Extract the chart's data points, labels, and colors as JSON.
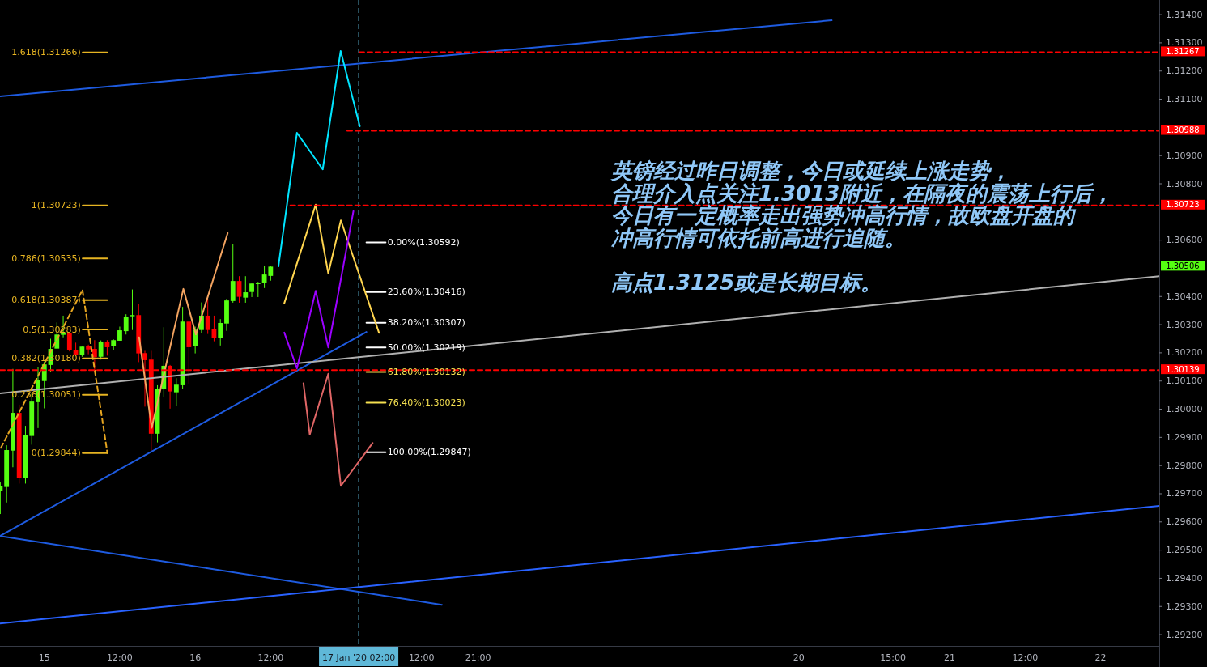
{
  "chart_data": {
    "type": "candlestick",
    "x": [
      "2020-01-14T17:00",
      "2020-01-14T18:00",
      "2020-01-14T19:00",
      "2020-01-14T20:00",
      "2020-01-14T21:00",
      "2020-01-14T22:00",
      "2020-01-14T23:00",
      "2020-01-15T00:00",
      "2020-01-15T01:00",
      "2020-01-15T02:00",
      "2020-01-15T03:00",
      "2020-01-15T04:00",
      "2020-01-15T05:00",
      "2020-01-15T06:00",
      "2020-01-15T07:00",
      "2020-01-15T08:00",
      "2020-01-15T09:00",
      "2020-01-15T10:00",
      "2020-01-15T11:00",
      "2020-01-15T12:00",
      "2020-01-15T13:00",
      "2020-01-15T14:00",
      "2020-01-15T15:00",
      "2020-01-15T16:00",
      "2020-01-15T17:00",
      "2020-01-15T18:00",
      "2020-01-15T19:00",
      "2020-01-15T20:00",
      "2020-01-15T21:00",
      "2020-01-15T22:00",
      "2020-01-15T23:00",
      "2020-01-16T00:00",
      "2020-01-16T01:00",
      "2020-01-16T02:00",
      "2020-01-16T03:00",
      "2020-01-16T04:00",
      "2020-01-16T05:00",
      "2020-01-16T06:00",
      "2020-01-16T07:00",
      "2020-01-16T08:00",
      "2020-01-16T09:00",
      "2020-01-16T10:00",
      "2020-01-16T11:00",
      "2020-01-16T12:00"
    ],
    "ohlc": [
      [
        1.29709,
        1.2974,
        1.29628,
        1.29727
      ],
      [
        1.29724,
        1.29872,
        1.29669,
        1.29855
      ],
      [
        1.29853,
        1.30143,
        1.29794,
        1.29987
      ],
      [
        1.29987,
        1.30016,
        1.29736,
        1.29755
      ],
      [
        1.29755,
        1.29941,
        1.29736,
        1.29907
      ],
      [
        1.29905,
        1.30056,
        1.29874,
        1.30027
      ],
      [
        1.30025,
        1.30148,
        1.29933,
        1.30102
      ],
      [
        1.301,
        1.30169,
        1.30003,
        1.30159
      ],
      [
        1.30157,
        1.3025,
        1.30133,
        1.30214
      ],
      [
        1.30215,
        1.30308,
        1.30215,
        1.30265
      ],
      [
        1.30264,
        1.30332,
        1.30255,
        1.30269
      ],
      [
        1.30269,
        1.30272,
        1.30205,
        1.30209
      ],
      [
        1.30211,
        1.30236,
        1.3019,
        1.30192
      ],
      [
        1.30192,
        1.30222,
        1.30186,
        1.30222
      ],
      [
        1.30223,
        1.30229,
        1.30195,
        1.30212
      ],
      [
        1.30214,
        1.30245,
        1.30135,
        1.30185
      ],
      [
        1.30186,
        1.30244,
        1.30176,
        1.3024
      ],
      [
        1.30237,
        1.30245,
        1.3019,
        1.3022
      ],
      [
        1.30223,
        1.30248,
        1.30209,
        1.30245
      ],
      [
        1.30243,
        1.30293,
        1.30243,
        1.3028
      ],
      [
        1.30277,
        1.30337,
        1.30265,
        1.30329
      ],
      [
        1.3033,
        1.30425,
        1.30281,
        1.30334
      ],
      [
        1.30334,
        1.30374,
        1.30167,
        1.30198
      ],
      [
        1.30199,
        1.30207,
        1.30009,
        1.30174
      ],
      [
        1.30176,
        1.30207,
        1.29853,
        1.29913
      ],
      [
        1.29913,
        1.30085,
        1.29882,
        1.30073
      ],
      [
        1.30071,
        1.30291,
        1.30042,
        1.30154
      ],
      [
        1.30154,
        1.30157,
        1.30002,
        1.30063
      ],
      [
        1.3006,
        1.3011,
        1.30011,
        1.30087
      ],
      [
        1.30085,
        1.30363,
        1.30071,
        1.30311
      ],
      [
        1.30311,
        1.30311,
        1.30091,
        1.3022
      ],
      [
        1.30223,
        1.30293,
        1.30198,
        1.30282
      ],
      [
        1.30281,
        1.30379,
        1.30269,
        1.30332
      ],
      [
        1.30332,
        1.30392,
        1.30267,
        1.30281
      ],
      [
        1.30283,
        1.30332,
        1.30241,
        1.30252
      ],
      [
        1.30252,
        1.3032,
        1.30226,
        1.30306
      ],
      [
        1.30304,
        1.30392,
        1.30278,
        1.30386
      ],
      [
        1.30384,
        1.30587,
        1.30378,
        1.30455
      ],
      [
        1.30455,
        1.30472,
        1.30378,
        1.30399
      ],
      [
        1.30396,
        1.30472,
        1.30378,
        1.30415
      ],
      [
        1.30416,
        1.30446,
        1.30398,
        1.30446
      ],
      [
        1.30444,
        1.30452,
        1.30398,
        1.30449
      ],
      [
        1.30447,
        1.30509,
        1.3043,
        1.30478
      ],
      [
        1.30473,
        1.30509,
        1.30456,
        1.30506
      ]
    ],
    "colors": [
      "#55ff11",
      "#55ff11",
      "#55ff11",
      "#ff0000",
      "#55ff11",
      "#55ff11",
      "#55ff11",
      "#55ff11",
      "#55ff11",
      "#55ff11",
      "#55ff11",
      "#ff0000",
      "#ff0000",
      "#55ff11",
      "#ff0000",
      "#ff0000",
      "#55ff11",
      "#ff0000",
      "#55ff11",
      "#55ff11",
      "#55ff11",
      "#55ff11",
      "#ff0000",
      "#ff0000",
      "#ff0000",
      "#55ff11",
      "#55ff11",
      "#ff0000",
      "#55ff11",
      "#55ff11",
      "#ff0000",
      "#55ff11",
      "#55ff11",
      "#ff0000",
      "#ff0000",
      "#55ff11",
      "#55ff11",
      "#55ff11",
      "#ff0000",
      "#55ff11",
      "#55ff11",
      "#55ff11",
      "#55ff11",
      "#55ff11"
    ],
    "series": [
      {
        "type": "line",
        "color": "#1e5be0",
        "x": [
          "2020-01-14T16:57",
          "2020-01-20T05:14"
        ],
        "values": [
          1.3111,
          1.3138
        ]
      },
      {
        "type": "line",
        "color": "#1e5be0",
        "x": [
          "2020-01-14T16:57",
          "2020-01-17T03:14"
        ],
        "values": [
          1.2955,
          1.30274
        ]
      },
      {
        "type": "line",
        "color": "#1e5be0",
        "x": [
          "2020-01-14T16:57",
          "2020-01-17T15:14"
        ],
        "values": [
          1.2955,
          1.29306
        ]
      },
      {
        "type": "line",
        "color": "#2962ff",
        "x": [
          "2020-01-14T16:57",
          "2020-01-22T09:20"
        ],
        "values": [
          1.2924,
          1.29657
        ]
      },
      {
        "type": "line",
        "color": "#b0b0b0",
        "x": [
          "2020-01-14T16:57",
          "2020-01-22T09:20"
        ],
        "values": [
          1.30056,
          1.30472
        ]
      },
      {
        "type": "line",
        "color": "#e6a520",
        "line_style": "dashed",
        "x": [
          "2020-01-14T17:06",
          "2020-01-15T06:04",
          "2020-01-15T10:02"
        ],
        "values": [
          1.29863,
          1.30423,
          1.29844
        ]
      },
      {
        "type": "line",
        "color": "#e6b422",
        "x": [
          "2020-01-15T06:06",
          "2020-01-15T10:00"
        ],
        "values": [
          1.31266,
          1.31266
        ]
      },
      {
        "type": "line",
        "color": "#e6b422",
        "x": [
          "2020-01-15T06:06",
          "2020-01-15T10:00"
        ],
        "values": [
          1.30723,
          1.30723
        ]
      },
      {
        "type": "line",
        "color": "#e6b422",
        "x": [
          "2020-01-15T06:06",
          "2020-01-15T10:00"
        ],
        "values": [
          1.30535,
          1.30535
        ]
      },
      {
        "type": "line",
        "color": "#e6b422",
        "x": [
          "2020-01-15T06:06",
          "2020-01-15T10:00"
        ],
        "values": [
          1.30387,
          1.30387
        ]
      },
      {
        "type": "line",
        "color": "#e6b422",
        "x": [
          "2020-01-15T06:06",
          "2020-01-15T10:00"
        ],
        "values": [
          1.30283,
          1.30283
        ]
      },
      {
        "type": "line",
        "color": "#e6b422",
        "x": [
          "2020-01-15T06:06",
          "2020-01-15T10:00"
        ],
        "values": [
          1.3018,
          1.3018
        ]
      },
      {
        "type": "line",
        "color": "#e6b422",
        "x": [
          "2020-01-15T06:06",
          "2020-01-15T10:00"
        ],
        "values": [
          1.30051,
          1.30051
        ]
      },
      {
        "type": "line",
        "color": "#e6b422",
        "x": [
          "2020-01-15T06:06",
          "2020-01-15T10:00"
        ],
        "values": [
          1.29844,
          1.29844
        ]
      },
      {
        "type": "line",
        "color": "#ffffff",
        "x": [
          "2020-01-17T03:14",
          "2020-01-17T06:17"
        ],
        "values": [
          1.30592,
          1.30592
        ]
      },
      {
        "type": "line",
        "color": "#ffffff",
        "x": [
          "2020-01-17T03:14",
          "2020-01-17T06:17"
        ],
        "values": [
          1.30416,
          1.30416
        ]
      },
      {
        "type": "line",
        "color": "#ffffff",
        "x": [
          "2020-01-17T03:14",
          "2020-01-17T06:17"
        ],
        "values": [
          1.30307,
          1.30307
        ]
      },
      {
        "type": "line",
        "color": "#ffffff",
        "x": [
          "2020-01-17T03:14",
          "2020-01-17T06:17"
        ],
        "values": [
          1.30219,
          1.30219
        ]
      },
      {
        "type": "line",
        "color": "#f5e050",
        "x": [
          "2020-01-17T03:14",
          "2020-01-17T06:17"
        ],
        "values": [
          1.30132,
          1.30132
        ]
      },
      {
        "type": "line",
        "color": "#f5e050",
        "x": [
          "2020-01-17T03:14",
          "2020-01-17T06:17"
        ],
        "values": [
          1.30023,
          1.30023
        ]
      },
      {
        "type": "line",
        "color": "#ffffff",
        "x": [
          "2020-01-17T03:14",
          "2020-01-17T06:17"
        ],
        "values": [
          1.29847,
          1.29847
        ]
      },
      {
        "type": "line",
        "color": "#00e5ff",
        "x": [
          "2020-01-16T13:14",
          "2020-01-16T16:11",
          "2020-01-16T20:17",
          "2020-01-16T23:08",
          "2020-01-17T02:11"
        ],
        "values": [
          1.30507,
          1.30981,
          1.30851,
          1.31271,
          1.31004
        ]
      },
      {
        "type": "line",
        "color": "#f4a460",
        "x": [
          "2020-01-15T15:05",
          "2020-01-15T17:05",
          "2020-01-15T22:07",
          "2020-01-16T00:07",
          "2020-01-16T05:10"
        ],
        "values": [
          1.30255,
          1.29934,
          1.30427,
          1.30265,
          1.30625
        ]
      },
      {
        "type": "line",
        "color": "#ffd54f",
        "x": [
          "2020-01-16T14:10",
          "2020-01-16T19:10",
          "2020-01-16T21:10",
          "2020-01-16T23:10",
          "2020-01-17T05:14"
        ],
        "values": [
          1.30376,
          1.30726,
          1.30482,
          1.3067,
          1.30271
        ]
      },
      {
        "type": "line",
        "color": "#9b00ff",
        "x": [
          "2020-01-16T14:10",
          "2020-01-16T16:11",
          "2020-01-16T19:10",
          "2020-01-16T21:10",
          "2020-01-17T01:10"
        ],
        "values": [
          1.30272,
          1.30145,
          1.3042,
          1.30219,
          1.30703
        ]
      },
      {
        "type": "line",
        "color": "#e06666",
        "x": [
          "2020-01-16T17:13",
          "2020-01-16T18:13",
          "2020-01-16T21:10",
          "2020-01-16T23:10",
          "2020-01-17T04:13"
        ],
        "values": [
          1.30092,
          1.2991,
          1.30126,
          1.29728,
          1.2988
        ]
      },
      {
        "type": "line",
        "color": "#ff0000",
        "line_style": "dashed",
        "x": [
          "2020-01-17T02:06",
          "2020-01-22T09:20"
        ],
        "values": [
          1.31267,
          1.31267
        ],
        "value_labels": [
          null,
          "1.31267"
        ]
      },
      {
        "type": "line",
        "color": "#ff0000",
        "line_style": "dashed",
        "x": [
          "2020-01-17T00:11",
          "2020-01-22T09:20"
        ],
        "values": [
          1.30988,
          1.30988
        ],
        "value_labels": [
          null,
          "1.30988"
        ]
      },
      {
        "type": "line",
        "color": "#ff0000",
        "line_style": "dashed",
        "x": [
          "2020-01-16T15:08",
          "2020-01-22T09:20"
        ],
        "values": [
          1.30723,
          1.30723
        ],
        "value_labels": [
          null,
          "1.30723"
        ]
      },
      {
        "type": "line",
        "color": "#ff0000",
        "line_style": "dashed",
        "x": [
          "2020-01-14T16:57",
          "2020-01-22T09:20"
        ],
        "values": [
          1.30139,
          1.30139
        ],
        "value_labels": [
          null,
          "1.30139"
        ]
      }
    ],
    "xlim": [
      "2020-01-14T16:57",
      "2020-01-22T09:20"
    ],
    "ylim": [
      1.2916,
      1.31452
    ],
    "xticks": [
      {
        "value": "2020-01-15T00:00",
        "label": "15"
      },
      {
        "value": "2020-01-15T12:00",
        "label": "12:00"
      },
      {
        "value": "2020-01-16T00:00",
        "label": "16"
      },
      {
        "value": "2020-01-16T12:00",
        "label": "12:00"
      },
      {
        "value": "2020-01-17T02:00",
        "label": "17 Jan '20  02:00"
      },
      {
        "value": "2020-01-17T12:00",
        "label": "12:00"
      },
      {
        "value": "2020-01-17T21:00",
        "label": "21:00"
      },
      {
        "value": "2020-01-20T00:00",
        "label": "20"
      },
      {
        "value": "2020-01-20T15:00",
        "label": "15:00"
      },
      {
        "value": "2020-01-21T00:00",
        "label": "21"
      },
      {
        "value": "2020-01-21T12:00",
        "label": "12:00"
      },
      {
        "value": "2020-01-22T00:00",
        "label": "22"
      }
    ],
    "yticks": [
      {
        "value": 1.292,
        "label": "1.29200"
      },
      {
        "value": 1.293,
        "label": "1.29300"
      },
      {
        "value": 1.294,
        "label": "1.29400"
      },
      {
        "value": 1.295,
        "label": "1.29500"
      },
      {
        "value": 1.296,
        "label": "1.29600"
      },
      {
        "value": 1.297,
        "label": "1.29700"
      },
      {
        "value": 1.298,
        "label": "1.29800"
      },
      {
        "value": 1.299,
        "label": "1.29900"
      },
      {
        "value": 1.3,
        "label": "1.30000"
      },
      {
        "value": 1.301,
        "label": "1.30100"
      },
      {
        "value": 1.302,
        "label": "1.30200"
      },
      {
        "value": 1.303,
        "label": "1.30300"
      },
      {
        "value": 1.304,
        "label": "1.30400"
      },
      {
        "value": 1.306,
        "label": "1.30600"
      },
      {
        "value": 1.308,
        "label": "1.30800"
      },
      {
        "value": 1.309,
        "label": "1.30900"
      },
      {
        "value": 1.311,
        "label": "1.31100"
      },
      {
        "value": 1.312,
        "label": "1.31200"
      },
      {
        "value": 1.313,
        "label": "1.31300"
      },
      {
        "value": 1.314,
        "label": "1.31400"
      }
    ],
    "ref_lines": [
      {
        "axis": "x",
        "value": "2020-01-17T02:00",
        "color": "#5fb8d8",
        "line_style": "dashed"
      }
    ],
    "annotations": [
      "英镑经过昨日调整，今日或延续上涨走势，",
      "合理介入点关注1.3013附近，在隔夜的震荡上行后，",
      "今日有一定概率走出强势冲高行情，故欧盘开盘的",
      "冲高行情可依托前高进行追随。",
      "高点1.3125或是长期目标。",
      {
        "text": "1.618(1.31266)",
        "x": "2020-01-15T05:48",
        "y": 1.31266
      },
      {
        "text": "1(1.30723)",
        "x": "2020-01-15T05:48",
        "y": 1.30723
      },
      {
        "text": "0.786(1.30535)",
        "x": "2020-01-15T05:48",
        "y": 1.30535
      },
      {
        "text": "0.618(1.30387)",
        "x": "2020-01-15T05:48",
        "y": 1.30387
      },
      {
        "text": "0.5(1.30283)",
        "x": "2020-01-15T05:48",
        "y": 1.30283
      },
      {
        "text": "0.382(1.30180)",
        "x": "2020-01-15T05:48",
        "y": 1.3018
      },
      {
        "text": "0.236(1.30051)",
        "x": "2020-01-15T05:48",
        "y": 1.30051
      },
      {
        "text": "0(1.29844)",
        "x": "2020-01-15T05:48",
        "y": 1.29844
      },
      {
        "text": "0.00%(1.30592)",
        "x": "2020-01-17T06:36",
        "y": 1.30592
      },
      {
        "text": "23.60%(1.30416)",
        "x": "2020-01-17T06:36",
        "y": 1.30416
      },
      {
        "text": "38.20%(1.30307)",
        "x": "2020-01-17T06:36",
        "y": 1.30307
      },
      {
        "text": "50.00%(1.30219)",
        "x": "2020-01-17T06:36",
        "y": 1.30219
      },
      {
        "text": "61.80%(1.30132)",
        "x": "2020-01-17T06:36",
        "y": 1.30132
      },
      {
        "text": "76.40%(1.30023)",
        "x": "2020-01-17T06:36",
        "y": 1.30023
      },
      {
        "text": "100.00%(1.29847)",
        "x": "2020-01-17T06:36",
        "y": 1.29847
      },
      "1.30506"
    ]
  }
}
